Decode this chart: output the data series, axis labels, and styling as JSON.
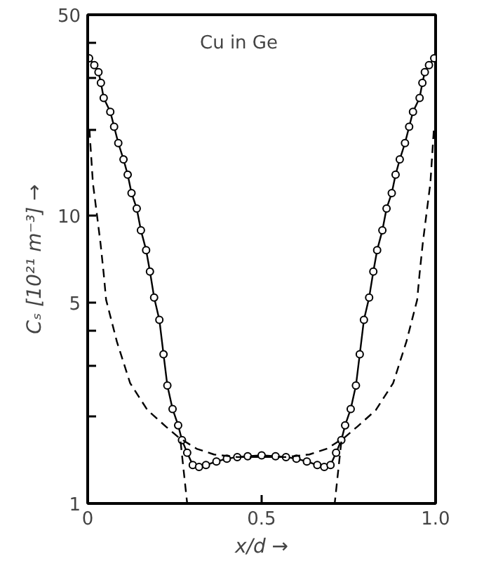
{
  "chart_data": {
    "type": "line",
    "xlabel": "x/d →",
    "ylabel": "Cₛ [10²¹ m⁻³] →",
    "annotations": [
      "Cu in Ge"
    ],
    "log": "y",
    "grid": false,
    "xlim": [
      0,
      1.0
    ],
    "ylim": [
      1,
      50
    ],
    "xticks": [
      0,
      0.5,
      {
        "value": 1.0,
        "label": "1.0"
      }
    ],
    "yticks": [
      1,
      {
        "value": 2,
        "label": null
      },
      {
        "value": 3,
        "label": null
      },
      {
        "value": 4,
        "label": null
      },
      5,
      10,
      {
        "value": 20,
        "label": null
      },
      {
        "value": 30,
        "label": null
      },
      {
        "value": 40,
        "label": null
      },
      50
    ],
    "series": [
      {
        "color": "#000000",
        "marker": "circle",
        "line_style": "solid",
        "x": [
          0.004,
          0.019,
          0.031,
          0.038,
          0.046,
          0.065,
          0.076,
          0.088,
          0.103,
          0.115,
          0.126,
          0.141,
          0.153,
          0.168,
          0.179,
          0.191,
          0.206,
          0.218,
          0.229,
          0.244,
          0.26,
          0.271,
          0.286,
          0.302,
          0.32,
          0.34,
          0.37,
          0.4,
          0.43,
          0.46,
          0.5,
          0.54,
          0.57,
          0.6,
          0.63,
          0.66,
          0.68,
          0.698,
          0.714,
          0.729,
          0.74,
          0.756,
          0.771,
          0.782,
          0.794,
          0.809,
          0.821,
          0.832,
          0.847,
          0.859,
          0.874,
          0.885,
          0.897,
          0.912,
          0.924,
          0.935,
          0.954,
          0.962,
          0.969,
          0.981,
          0.996
        ],
        "values": [
          35.3,
          33.4,
          31.6,
          29.0,
          25.7,
          23.0,
          20.4,
          17.9,
          15.7,
          13.9,
          12.0,
          10.6,
          8.9,
          7.6,
          6.4,
          5.2,
          4.35,
          3.3,
          2.57,
          2.13,
          1.87,
          1.66,
          1.5,
          1.36,
          1.34,
          1.36,
          1.4,
          1.43,
          1.45,
          1.46,
          1.47,
          1.46,
          1.45,
          1.43,
          1.4,
          1.36,
          1.34,
          1.36,
          1.5,
          1.66,
          1.87,
          2.13,
          2.57,
          3.3,
          4.35,
          5.2,
          6.4,
          7.6,
          8.9,
          10.6,
          12.0,
          13.9,
          15.7,
          17.9,
          20.4,
          23.0,
          25.7,
          29.0,
          31.6,
          33.4,
          35.3
        ]
      },
      {
        "color": "#000000",
        "marker": "none",
        "line_style": "dashed",
        "x": [
          0.267,
          0.286
        ],
        "values": [
          1.64,
          1.0
        ]
      },
      {
        "color": "#000000",
        "marker": "none",
        "line_style": "dashed",
        "x": [
          0.729,
          0.71
        ],
        "values": [
          1.64,
          1.0
        ]
      },
      {
        "color": "#000000",
        "marker": "none",
        "line_style": "dashed",
        "x": [
          0.005,
          0.015,
          0.027,
          0.037,
          0.046,
          0.053,
          0.084,
          0.122,
          0.172,
          0.225,
          0.263,
          0.313,
          0.363,
          0.43,
          0.5,
          0.57,
          0.637,
          0.687,
          0.737,
          0.775,
          0.828,
          0.878,
          0.916,
          0.947,
          0.954,
          0.963,
          0.973,
          0.985,
          0.995
        ],
        "values": [
          20,
          13,
          10,
          8,
          6.3,
          5.1,
          3.65,
          2.62,
          2.11,
          1.85,
          1.69,
          1.55,
          1.48,
          1.45,
          1.45,
          1.45,
          1.48,
          1.55,
          1.69,
          1.85,
          2.11,
          2.62,
          3.65,
          5.1,
          6.3,
          8,
          10,
          13,
          20
        ]
      }
    ]
  }
}
